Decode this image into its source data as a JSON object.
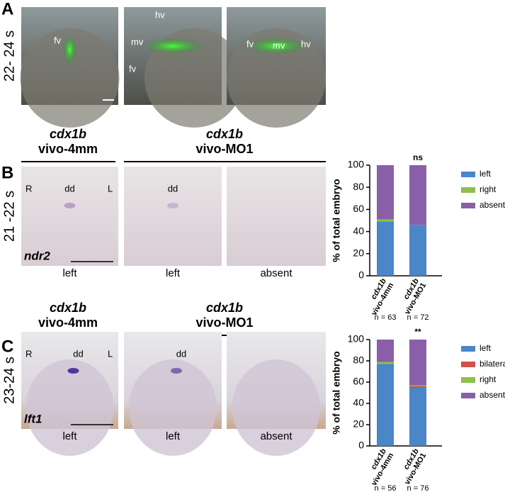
{
  "figure": {
    "panels": [
      {
        "letter": "A",
        "stage": "22- 24 s",
        "image_labels": [
          [
            "fv"
          ],
          [
            "hv",
            "mv",
            "fv"
          ],
          [
            "fv",
            "mv",
            "hv"
          ]
        ]
      },
      {
        "letter": "B",
        "stage": "21 -22 s",
        "headings": [
          [
            "cdx1b",
            "vivo-4mm"
          ],
          [
            "cdx1b",
            "vivo-MO1"
          ]
        ],
        "sides": [
          "R",
          "L"
        ],
        "marker": "dd",
        "gene": "ndr2",
        "captions": [
          "left",
          "left",
          "absent"
        ]
      },
      {
        "letter": "C",
        "stage": "23-24 s",
        "headings": [
          [
            "cdx1b",
            "vivo-4mm"
          ],
          [
            "cdx1b",
            "vivo-MO1"
          ]
        ],
        "sides": [
          "R",
          "L"
        ],
        "marker": "dd",
        "gene": "lft1",
        "captions": [
          "left",
          "left",
          "absent"
        ]
      }
    ]
  },
  "chart_data": [
    {
      "type": "bar",
      "stacked": true,
      "y_label": "% of total embryo",
      "categories": [
        [
          "cdx1b",
          "vivo-4mm"
        ],
        [
          "cdx1b",
          "vivo-MO1"
        ]
      ],
      "n_labels": [
        "n = 63",
        "n = 72"
      ],
      "annotations": [
        null,
        "ns"
      ],
      "series": [
        {
          "name": "left",
          "color": "#4a86c8",
          "values": [
            49,
            46
          ]
        },
        {
          "name": "right",
          "color": "#8dc04a",
          "values": [
            2,
            0
          ]
        },
        {
          "name": "absent",
          "color": "#8a5fa8",
          "values": [
            49,
            54
          ]
        }
      ],
      "ylim": [
        0,
        100
      ],
      "yticks": [
        0,
        20,
        40,
        60,
        80,
        100
      ],
      "legend": "right"
    },
    {
      "type": "bar",
      "stacked": true,
      "y_label": "% of total embryo",
      "categories": [
        [
          "cdx1b",
          "vivo-4mm"
        ],
        [
          "cdx1b",
          "vivo-MO1"
        ]
      ],
      "n_labels": [
        "n = 56",
        "n = 76"
      ],
      "annotations": [
        null,
        "**"
      ],
      "series": [
        {
          "name": "left",
          "color": "#4a86c8",
          "values": [
            77,
            55
          ]
        },
        {
          "name": "bilateral",
          "color": "#d0504a",
          "values": [
            0,
            1
          ]
        },
        {
          "name": "right",
          "color": "#8dc04a",
          "values": [
            2,
            1
          ]
        },
        {
          "name": "absent",
          "color": "#8a5fa8",
          "values": [
            21,
            43
          ]
        }
      ],
      "ylim": [
        0,
        100
      ],
      "yticks": [
        0,
        20,
        40,
        60,
        80,
        100
      ],
      "legend": "right"
    }
  ]
}
